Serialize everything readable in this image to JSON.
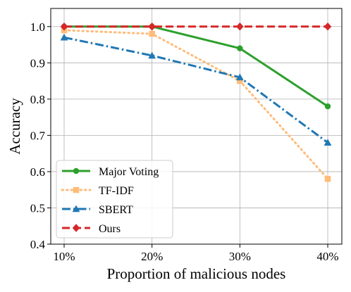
{
  "chart_data": {
    "type": "line",
    "title": "",
    "xlabel": "Proportion of malicious nodes",
    "ylabel": "Accuracy",
    "categories": [
      "10%",
      "20%",
      "30%",
      "40%"
    ],
    "ylim": [
      0.4,
      1.05
    ],
    "yticks": [
      "0.4",
      "0.5",
      "0.6",
      "0.7",
      "0.8",
      "0.9",
      "1.0"
    ],
    "ytick_values": [
      0.4,
      0.5,
      0.6,
      0.7,
      0.8,
      0.9,
      1.0
    ],
    "grid": true,
    "legend_position": "lower-left",
    "series": [
      {
        "name": "Major Voting",
        "values": [
          1.0,
          1.0,
          0.94,
          0.78
        ],
        "color": "#2ca02c",
        "marker": "circle",
        "dash": "solid"
      },
      {
        "name": "TF-IDF",
        "values": [
          0.99,
          0.98,
          0.85,
          0.58
        ],
        "color": "#ffbb78",
        "marker": "square",
        "dash": "dotted"
      },
      {
        "name": "SBERT",
        "values": [
          0.97,
          0.92,
          0.86,
          0.68
        ],
        "color": "#1f77b4",
        "marker": "triangle",
        "dash": "dashdot"
      },
      {
        "name": "Ours",
        "values": [
          1.0,
          1.0,
          1.0,
          1.0
        ],
        "color": "#d62728",
        "marker": "diamond",
        "dash": "dashed"
      }
    ]
  }
}
